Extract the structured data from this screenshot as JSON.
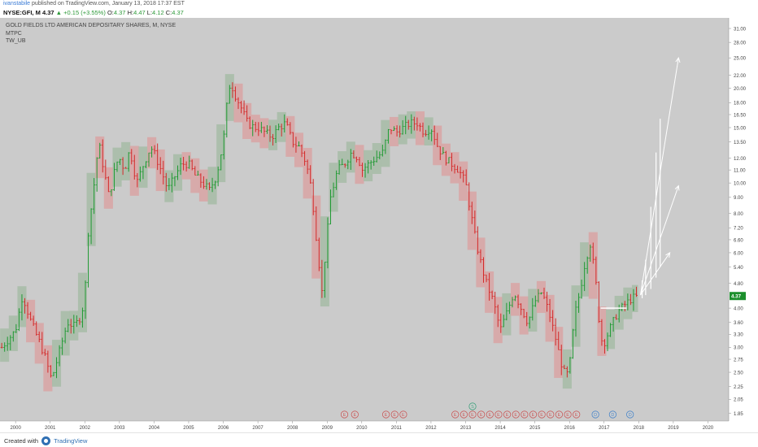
{
  "header": {
    "author": "ivanstabile",
    "published_text": "published on TradingView.com, January 13, 2018 17:37 EST",
    "symbol": "NYSE:GFI, M",
    "last": "4.37",
    "change": "▲ +0.15 (+3.55%)",
    "o_label": "O:",
    "o_val": "4.37",
    "h_label": "H:",
    "h_val": "4.47",
    "l_label": "L:",
    "l_val": "4.12",
    "c_label": "C:",
    "c_val": "4.37"
  },
  "studies": {
    "title": "GOLD FIELDS LTD AMERICAN DEPOSITARY SHARES, M, NYSE",
    "line2": "MTPC",
    "line3": "TW_UB"
  },
  "footer": {
    "created_with": "Created with",
    "brand": "TradingView"
  },
  "colors": {
    "background": "#cbcbcb",
    "up": "#1f9a32",
    "down": "#d42a2a",
    "up_zone": "#a7bca7",
    "down_zone": "#d9a5a5",
    "arrow": "#ffffff",
    "price_tag": "#1c8f2c"
  },
  "chart_data": {
    "type": "candlestick",
    "title": "GOLD FIELDS LTD AMERICAN DEPOSITARY SHARES, M, NYSE",
    "x_ticks": [
      "2000",
      "2001",
      "2002",
      "2003",
      "2004",
      "2005",
      "2006",
      "2007",
      "2008",
      "2009",
      "2010",
      "2011",
      "2012",
      "2013",
      "2014",
      "2015",
      "2016",
      "2017",
      "2018",
      "2019",
      "2020"
    ],
    "y_scale": "log",
    "y_ticks": [
      "31.00",
      "28.00",
      "25.00",
      "22.00",
      "20.00",
      "18.00",
      "16.50",
      "15.00",
      "13.50",
      "12.00",
      "11.00",
      "10.00",
      "9.00",
      "8.00",
      "7.20",
      "6.60",
      "6.00",
      "5.40",
      "4.80",
      "4.37",
      "4.00",
      "3.60",
      "3.30",
      "3.00",
      "2.75",
      "2.50",
      "2.25",
      "2.05",
      "1.85"
    ],
    "last_price": 4.37,
    "price_path": [
      [
        1999.6,
        3.0
      ],
      [
        2000.0,
        3.4
      ],
      [
        2000.2,
        4.4
      ],
      [
        2000.45,
        3.6
      ],
      [
        2000.7,
        3.1
      ],
      [
        2000.9,
        2.7
      ],
      [
        2001.0,
        2.4
      ],
      [
        2001.1,
        2.5
      ],
      [
        2001.3,
        3.0
      ],
      [
        2001.5,
        3.6
      ],
      [
        2001.7,
        3.5
      ],
      [
        2001.9,
        3.8
      ],
      [
        2002.0,
        4.4
      ],
      [
        2002.1,
        7.0
      ],
      [
        2002.25,
        9.5
      ],
      [
        2002.4,
        13.5
      ],
      [
        2002.55,
        11.0
      ],
      [
        2002.7,
        9.0
      ],
      [
        2002.9,
        11.5
      ],
      [
        2003.0,
        12.0
      ],
      [
        2003.15,
        11.0
      ],
      [
        2003.3,
        12.8
      ],
      [
        2003.5,
        10.0
      ],
      [
        2003.7,
        11.5
      ],
      [
        2003.9,
        13.0
      ],
      [
        2004.0,
        12.5
      ],
      [
        2004.2,
        11.0
      ],
      [
        2004.4,
        9.5
      ],
      [
        2004.6,
        10.5
      ],
      [
        2004.8,
        11.5
      ],
      [
        2005.0,
        11.5
      ],
      [
        2005.2,
        10.5
      ],
      [
        2005.4,
        10.0
      ],
      [
        2005.6,
        9.5
      ],
      [
        2005.8,
        10.5
      ],
      [
        2006.0,
        13.5
      ],
      [
        2006.1,
        17.5
      ],
      [
        2006.2,
        21.0
      ],
      [
        2006.35,
        19.0
      ],
      [
        2006.5,
        17.5
      ],
      [
        2006.7,
        15.5
      ],
      [
        2006.9,
        15.0
      ],
      [
        2007.0,
        15.0
      ],
      [
        2007.2,
        14.5
      ],
      [
        2007.4,
        14.0
      ],
      [
        2007.6,
        15.0
      ],
      [
        2007.8,
        15.5
      ],
      [
        2008.0,
        13.5
      ],
      [
        2008.2,
        13.0
      ],
      [
        2008.4,
        11.5
      ],
      [
        2008.55,
        9.5
      ],
      [
        2008.7,
        6.5
      ],
      [
        2008.85,
        4.5
      ],
      [
        2008.95,
        6.0
      ],
      [
        2009.1,
        9.0
      ],
      [
        2009.3,
        11.0
      ],
      [
        2009.5,
        11.5
      ],
      [
        2009.7,
        12.5
      ],
      [
        2009.9,
        12.0
      ],
      [
        2010.0,
        11.0
      ],
      [
        2010.2,
        11.5
      ],
      [
        2010.4,
        12.0
      ],
      [
        2010.6,
        12.5
      ],
      [
        2010.8,
        15.0
      ],
      [
        2011.0,
        14.5
      ],
      [
        2011.2,
        15.0
      ],
      [
        2011.4,
        15.5
      ],
      [
        2011.6,
        15.5
      ],
      [
        2011.8,
        14.5
      ],
      [
        2012.0,
        15.0
      ],
      [
        2012.2,
        13.0
      ],
      [
        2012.4,
        12.0
      ],
      [
        2012.6,
        11.5
      ],
      [
        2012.8,
        11.0
      ],
      [
        2013.0,
        10.0
      ],
      [
        2013.15,
        8.0
      ],
      [
        2013.3,
        6.5
      ],
      [
        2013.45,
        5.5
      ],
      [
        2013.6,
        4.8
      ],
      [
        2013.8,
        4.2
      ],
      [
        2014.0,
        3.4
      ],
      [
        2014.2,
        3.9
      ],
      [
        2014.4,
        4.5
      ],
      [
        2014.6,
        4.0
      ],
      [
        2014.8,
        3.6
      ],
      [
        2015.0,
        4.2
      ],
      [
        2015.2,
        4.5
      ],
      [
        2015.4,
        3.9
      ],
      [
        2015.6,
        3.2
      ],
      [
        2015.75,
        2.7
      ],
      [
        2015.9,
        2.4
      ],
      [
        2016.0,
        2.6
      ],
      [
        2016.15,
        3.8
      ],
      [
        2016.3,
        4.5
      ],
      [
        2016.45,
        5.6
      ],
      [
        2016.6,
        6.4
      ],
      [
        2016.75,
        5.0
      ],
      [
        2016.9,
        3.2
      ],
      [
        2017.0,
        3.1
      ],
      [
        2017.2,
        3.5
      ],
      [
        2017.4,
        3.9
      ],
      [
        2017.6,
        4.1
      ],
      [
        2017.8,
        4.3
      ],
      [
        2018.0,
        4.37
      ]
    ],
    "projection_arrows": [
      {
        "from": [
          2018.05,
          4.4
        ],
        "to": [
          2019.15,
          25.0
        ]
      },
      {
        "from": [
          2018.05,
          4.4
        ],
        "to": [
          2019.15,
          9.8
        ]
      },
      {
        "from": [
          2018.05,
          4.4
        ],
        "to": [
          2018.9,
          6.0
        ]
      }
    ],
    "markers": [
      {
        "x": 2009.5,
        "label": "E"
      },
      {
        "x": 2009.8,
        "label": "E"
      },
      {
        "x": 2010.7,
        "label": "E"
      },
      {
        "x": 2010.95,
        "label": "E"
      },
      {
        "x": 2011.2,
        "label": "E"
      },
      {
        "x": 2012.7,
        "label": "E"
      },
      {
        "x": 2012.95,
        "label": "E"
      },
      {
        "x": 2013.2,
        "label": "E"
      },
      {
        "x": 2013.45,
        "label": "E"
      },
      {
        "x": 2013.7,
        "label": "E"
      },
      {
        "x": 2013.95,
        "label": "E"
      },
      {
        "x": 2014.2,
        "label": "E"
      },
      {
        "x": 2014.45,
        "label": "E"
      },
      {
        "x": 2014.7,
        "label": "E"
      },
      {
        "x": 2014.95,
        "label": "E"
      },
      {
        "x": 2015.2,
        "label": "E"
      },
      {
        "x": 2015.45,
        "label": "E"
      },
      {
        "x": 2015.7,
        "label": "E"
      },
      {
        "x": 2015.95,
        "label": "E"
      },
      {
        "x": 2016.2,
        "label": "E"
      },
      {
        "x": 2016.75,
        "label": "D"
      },
      {
        "x": 2017.25,
        "label": "D"
      },
      {
        "x": 2017.75,
        "label": "D"
      }
    ],
    "split_marker": {
      "x": 2013.2,
      "label": "S"
    }
  }
}
